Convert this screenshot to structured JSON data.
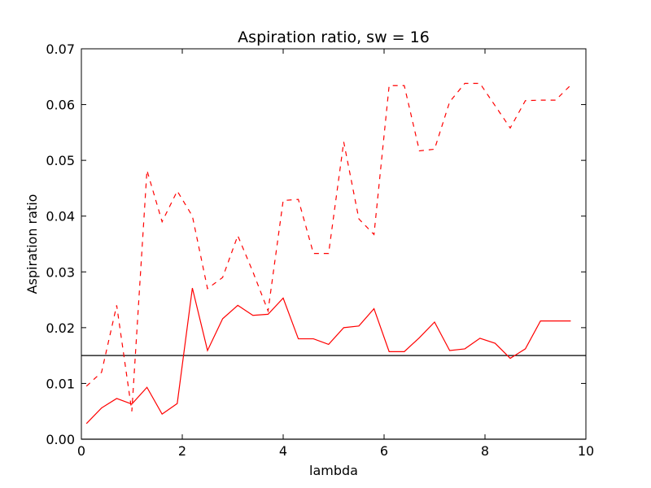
{
  "chart_data": {
    "type": "line",
    "title": "Aspiration ratio, sw = 16",
    "xlabel": "lambda",
    "ylabel": "Aspiration ratio",
    "xlim": [
      0,
      10
    ],
    "ylim": [
      0,
      0.07
    ],
    "xticks": [
      0,
      2,
      4,
      6,
      8,
      10
    ],
    "xtick_labels": [
      "0",
      "2",
      "4",
      "6",
      "8",
      "10"
    ],
    "yticks": [
      0,
      0.01,
      0.02,
      0.03,
      0.04,
      0.05,
      0.06,
      0.07
    ],
    "ytick_labels": [
      "0.00",
      "0.01",
      "0.02",
      "0.03",
      "0.04",
      "0.05",
      "0.06",
      "0.07"
    ],
    "grid": false,
    "x": [
      0.1,
      0.4,
      0.7,
      1.0,
      1.3,
      1.6,
      1.9,
      2.2,
      2.5,
      2.8,
      3.1,
      3.4,
      3.7,
      4.0,
      4.3,
      4.6,
      4.9,
      5.2,
      5.5,
      5.8,
      6.1,
      6.4,
      6.7,
      7.0,
      7.3,
      7.6,
      7.9,
      8.2,
      8.5,
      8.8,
      9.1,
      9.4,
      9.7
    ],
    "series": [
      {
        "style": "solid",
        "color": "#ff0000",
        "values": [
          0.0028,
          0.0056,
          0.0073,
          0.0063,
          0.0093,
          0.0045,
          0.0064,
          0.0271,
          0.0159,
          0.0216,
          0.024,
          0.0222,
          0.0224,
          0.0253,
          0.018,
          0.018,
          0.017,
          0.02,
          0.0203,
          0.0234,
          0.0157,
          0.0157,
          0.0182,
          0.021,
          0.0159,
          0.0162,
          0.0181,
          0.0172,
          0.0145,
          0.0162,
          0.0212,
          0.0212,
          0.0212
        ]
      },
      {
        "style": "dashed",
        "color": "#ff0000",
        "values": [
          0.0095,
          0.012,
          0.024,
          0.005,
          0.0482,
          0.039,
          0.0445,
          0.04,
          0.027,
          0.029,
          0.0365,
          0.03,
          0.023,
          0.0428,
          0.043,
          0.0333,
          0.0333,
          0.0533,
          0.0395,
          0.0367,
          0.0634,
          0.0634,
          0.0517,
          0.052,
          0.0605,
          0.0638,
          0.0638,
          0.0598,
          0.0558,
          0.0607,
          0.0608,
          0.0608,
          0.0635
        ]
      }
    ],
    "hlines": [
      {
        "y": 0.015,
        "color": "#000000"
      },
      {
        "y": 0.0,
        "color": "#000000"
      }
    ]
  }
}
